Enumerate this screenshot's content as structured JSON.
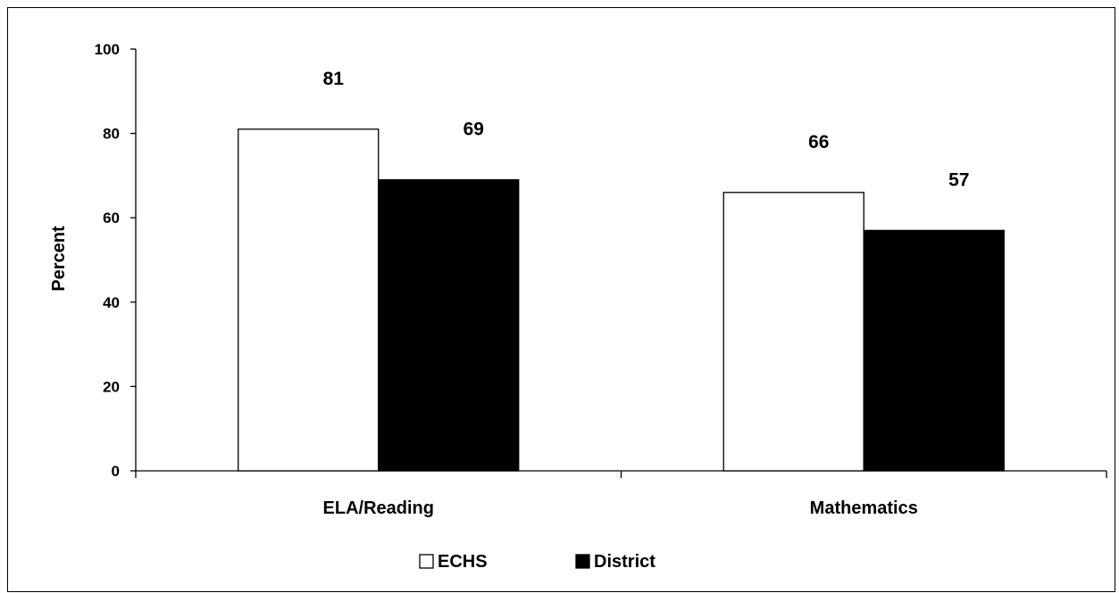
{
  "chart_data": {
    "type": "bar",
    "ylabel": "Percent",
    "ylim": [
      0,
      100
    ],
    "yticks": [
      0,
      20,
      40,
      60,
      80,
      100
    ],
    "categories": [
      "ELA/Reading",
      "Mathematics"
    ],
    "series": [
      {
        "name": "ECHS",
        "values": [
          81,
          66
        ],
        "color": "#ffffff"
      },
      {
        "name": "District",
        "values": [
          69,
          57
        ],
        "color": "#000000"
      }
    ],
    "data_labels": true,
    "grid": false,
    "legend": "bottom-center"
  }
}
